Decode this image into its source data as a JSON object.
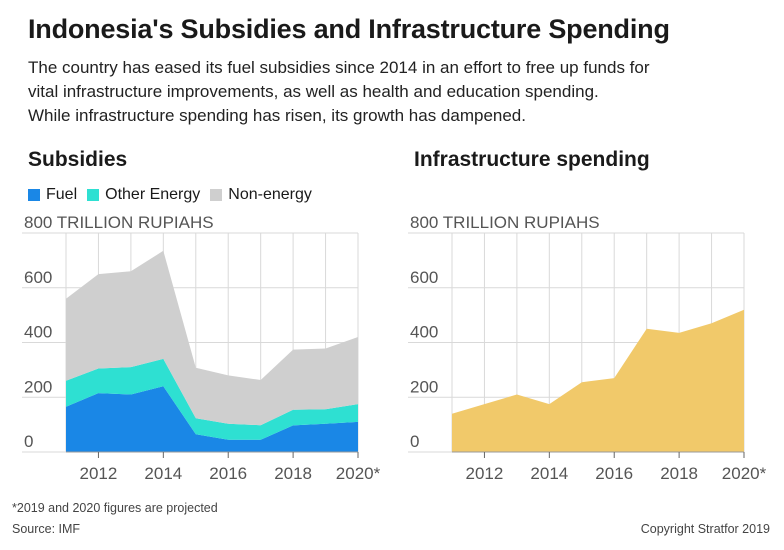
{
  "title": "Indonesia's Subsidies and Infrastructure Spending",
  "subtitle_lines": [
    "The country has eased its fuel subsidies since 2014 in an effort to free up funds for",
    "vital infrastructure improvements, as well as health and education spending.",
    "While infrastructure spending has risen, its growth has dampened."
  ],
  "footnote": "*2019 and 2020 figures are projected",
  "source": "Source: IMF",
  "copyright": "Copyright Stratfor 2019",
  "colors": {
    "fuel": "#1a87e6",
    "other_energy": "#2ee0d2",
    "non_energy": "#cfcfcf",
    "infrastructure": "#f1c96a",
    "grid": "#d9d9d9"
  },
  "chart_data": [
    {
      "type": "area",
      "stacked": true,
      "title": "Subsidies",
      "ylabel": "TRILLION RUPIAHS",
      "ylim": [
        0,
        800
      ],
      "yticks": [
        "0",
        "200",
        "400",
        "600",
        "800"
      ],
      "xlim": [
        2011,
        2020
      ],
      "xticks": [
        "2012",
        "2014",
        "2016",
        "2018",
        "2020*"
      ],
      "legend_position": "top-left",
      "x": [
        2011,
        2012,
        2013,
        2014,
        2015,
        2016,
        2017,
        2018,
        2019,
        2020
      ],
      "series": [
        {
          "name": "Fuel",
          "values": [
            165,
            215,
            210,
            240,
            65,
            45,
            45,
            97,
            103,
            110
          ]
        },
        {
          "name": "Other Energy",
          "values": [
            95,
            90,
            100,
            100,
            58,
            58,
            53,
            57,
            53,
            65
          ]
        },
        {
          "name": "Non-energy",
          "values": [
            300,
            345,
            350,
            395,
            185,
            177,
            165,
            220,
            222,
            245
          ]
        }
      ]
    },
    {
      "type": "area",
      "title": "Infrastructure spending",
      "ylabel": "TRILLION RUPIAHS",
      "ylim": [
        0,
        800
      ],
      "yticks": [
        "0",
        "200",
        "400",
        "600",
        "800"
      ],
      "xlim": [
        2011,
        2020
      ],
      "xticks": [
        "2012",
        "2014",
        "2016",
        "2018",
        "2020*"
      ],
      "x": [
        2011,
        2012,
        2013,
        2014,
        2015,
        2016,
        2017,
        2018,
        2019,
        2020
      ],
      "series": [
        {
          "values": [
            140,
            175,
            210,
            175,
            255,
            270,
            450,
            435,
            470,
            520
          ]
        }
      ]
    }
  ]
}
